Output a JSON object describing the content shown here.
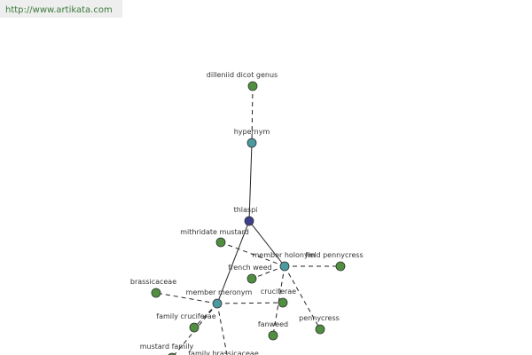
{
  "url": "http://www.artikata.com",
  "nodes": [
    {
      "label": "dilleniid dicot genus"
    },
    {
      "label": "hypernym"
    },
    {
      "label": "thlaspi"
    },
    {
      "label": "mithridate mustard"
    },
    {
      "label": "member holonym"
    },
    {
      "label": "field pennycress"
    },
    {
      "label": "french weed"
    },
    {
      "label": "brassicaceae"
    },
    {
      "label": "member meronym"
    },
    {
      "label": "cruciferae"
    },
    {
      "label": "family cruciferae"
    },
    {
      "label": "fanweed"
    },
    {
      "label": "pennycress"
    },
    {
      "label": "mustard family"
    },
    {
      "label": "family brassicaceae"
    }
  ]
}
